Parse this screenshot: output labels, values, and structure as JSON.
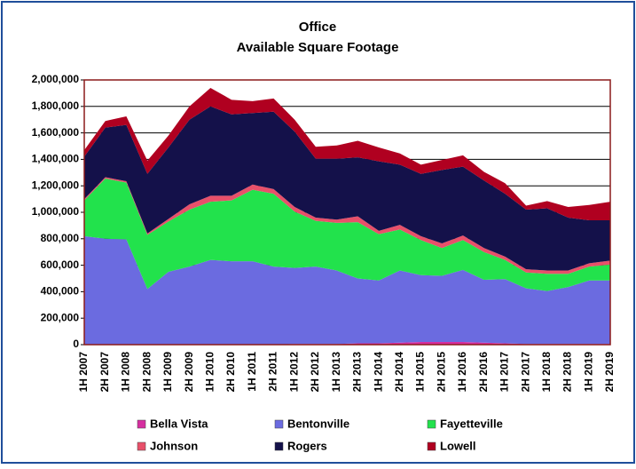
{
  "chart_data": {
    "type": "stacked_area",
    "title": "Office",
    "subtitle": "Available Square Footage",
    "categories": [
      "1H 2007",
      "2H 2007",
      "1H 2008",
      "2H 2008",
      "1H 2009",
      "2H 2009",
      "1H 2010",
      "2H 2010",
      "1H 2011",
      "2H 2011",
      "1H 2012",
      "2H 2012",
      "1H 2013",
      "2H 2013",
      "1H 2014",
      "2H 2014",
      "1H 2015",
      "2H 2015",
      "1H 2016",
      "2H 2016",
      "1H 2017",
      "2H 2017",
      "1H 2018",
      "2H 2018",
      "1H 2019",
      "2H 2019"
    ],
    "series": [
      {
        "name": "Bella Vista",
        "color": "#d62ea0",
        "values": [
          0,
          0,
          0,
          0,
          0,
          0,
          0,
          0,
          0,
          0,
          5000,
          5000,
          5000,
          10000,
          10000,
          15000,
          20000,
          20000,
          20000,
          15000,
          10000,
          5000,
          5000,
          5000,
          5000,
          5000
        ]
      },
      {
        "name": "Bentonville",
        "color": "#6b6be0",
        "values": [
          820000,
          800000,
          795000,
          420000,
          550000,
          590000,
          640000,
          630000,
          630000,
          590000,
          575000,
          585000,
          555000,
          490000,
          475000,
          545000,
          505000,
          500000,
          545000,
          475000,
          485000,
          420000,
          400000,
          430000,
          480000,
          480000
        ]
      },
      {
        "name": "Fayetteville",
        "color": "#22e24c",
        "values": [
          270000,
          455000,
          430000,
          410000,
          380000,
          430000,
          440000,
          460000,
          540000,
          550000,
          425000,
          345000,
          360000,
          425000,
          350000,
          310000,
          265000,
          210000,
          225000,
          210000,
          145000,
          120000,
          130000,
          100000,
          105000,
          120000
        ]
      },
      {
        "name": "Johnson",
        "color": "#e8506a",
        "values": [
          10000,
          10000,
          10000,
          10000,
          20000,
          40000,
          45000,
          35000,
          40000,
          35000,
          35000,
          25000,
          25000,
          45000,
          25000,
          35000,
          30000,
          35000,
          35000,
          30000,
          25000,
          25000,
          25000,
          25000,
          25000,
          30000
        ]
      },
      {
        "name": "Rogers",
        "color": "#14114a",
        "values": [
          320000,
          375000,
          425000,
          450000,
          540000,
          640000,
          675000,
          615000,
          540000,
          585000,
          570000,
          445000,
          460000,
          445000,
          525000,
          455000,
          470000,
          555000,
          520000,
          510000,
          475000,
          450000,
          470000,
          400000,
          325000,
          305000
        ]
      },
      {
        "name": "Lowell",
        "color": "#b00020",
        "values": [
          50000,
          50000,
          65000,
          100000,
          90000,
          100000,
          140000,
          110000,
          90000,
          100000,
          90000,
          90000,
          100000,
          125000,
          105000,
          85000,
          70000,
          75000,
          85000,
          65000,
          80000,
          30000,
          55000,
          80000,
          115000,
          140000
        ]
      }
    ],
    "ylim": [
      0,
      2000000
    ],
    "yticks": [
      0,
      {
        "value": 200000,
        "label": "200,000"
      },
      {
        "value": 400000,
        "label": "400,000"
      },
      {
        "value": 600000,
        "label": "600,000"
      },
      {
        "value": 800000,
        "label": "800,000"
      },
      {
        "value": 1000000,
        "label": "1,000,000"
      },
      {
        "value": 1200000,
        "label": "1,200,000"
      },
      {
        "value": 1400000,
        "label": "1,400,000"
      },
      {
        "value": 1600000,
        "label": "1,600,000"
      },
      {
        "value": 1800000,
        "label": "1,800,000"
      },
      {
        "value": 2000000,
        "label": "2,000,000"
      }
    ],
    "grid": true,
    "legend": "bottom"
  }
}
